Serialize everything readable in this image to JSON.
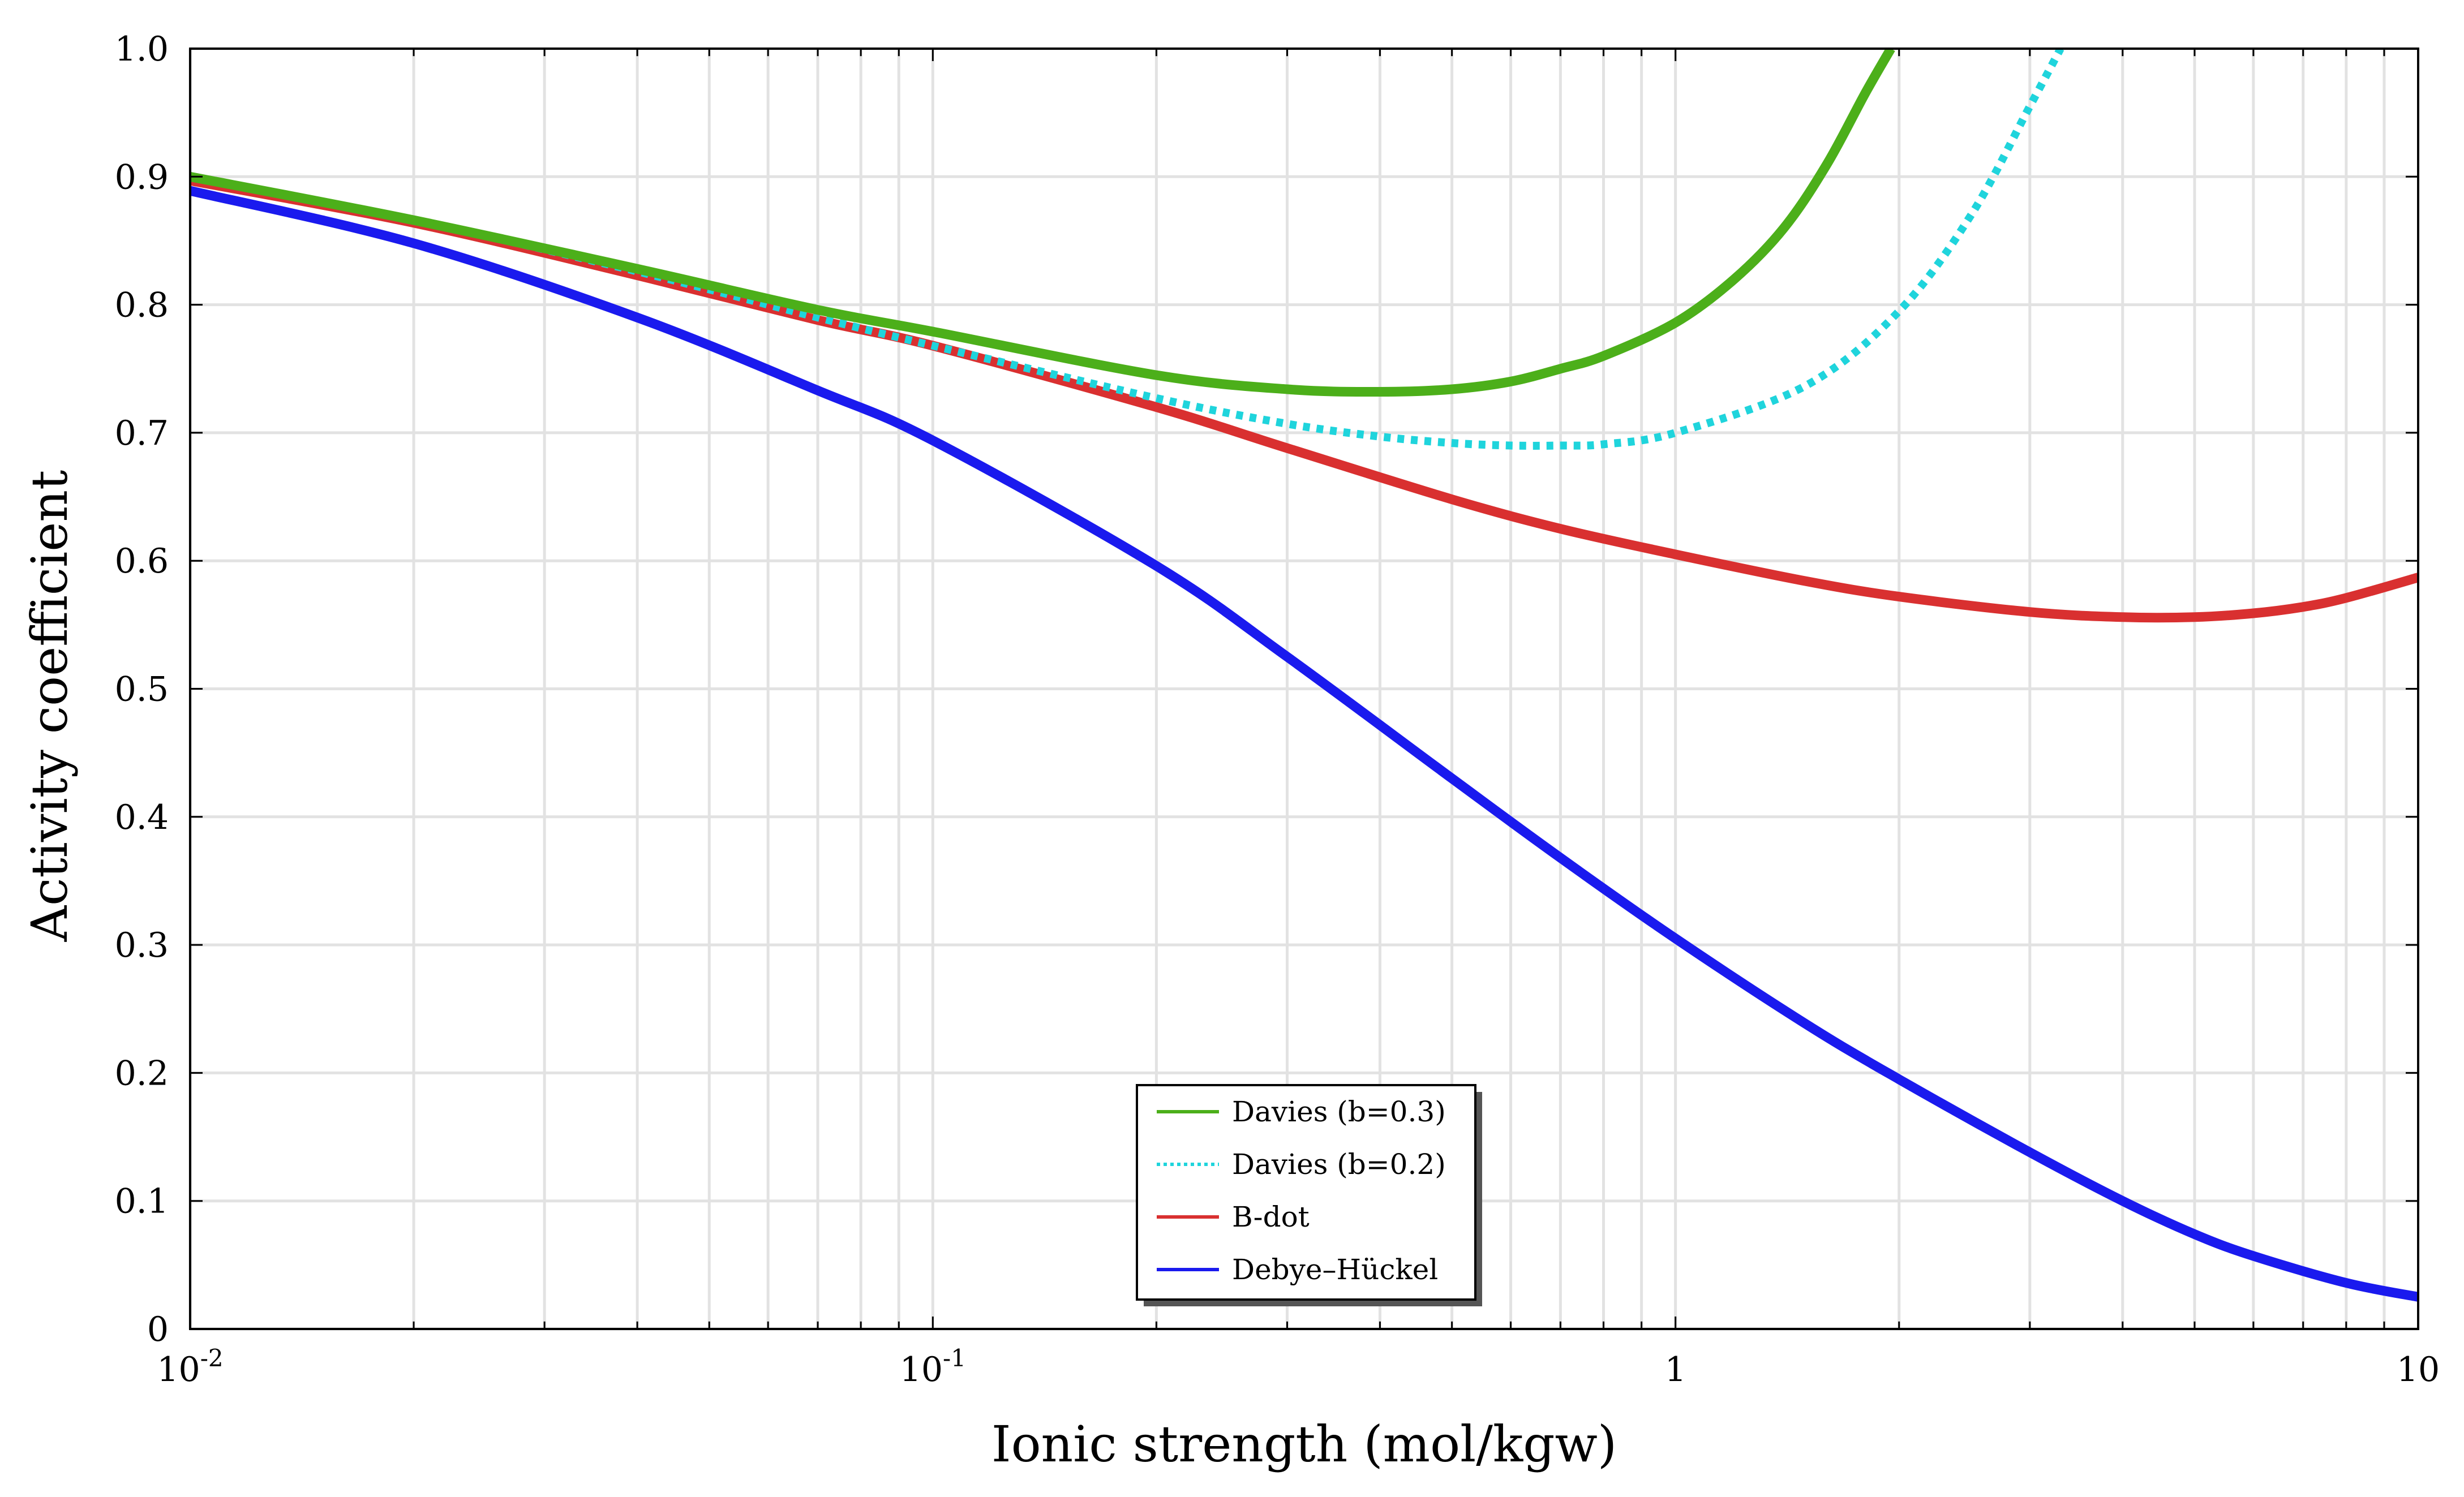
{
  "chart_data": {
    "type": "line",
    "title": "",
    "xlabel": "Ionic strength   (mol/kgw)",
    "ylabel": "Activity coefficient",
    "xscale": "log",
    "xlim": [
      0.01,
      10
    ],
    "ylim": [
      0,
      1.0
    ],
    "grid": true,
    "legend_position": "bottom-center",
    "x_ticks": [
      {
        "value": 0.01,
        "base": "10",
        "exp": "-2"
      },
      {
        "value": 0.1,
        "base": "10",
        "exp": "-1"
      },
      {
        "value": 1,
        "base": "1",
        "exp": ""
      },
      {
        "value": 10,
        "base": "10",
        "exp": ""
      }
    ],
    "y_ticks": [
      {
        "value": 0,
        "label": "0"
      },
      {
        "value": 0.1,
        "label": "0.1"
      },
      {
        "value": 0.2,
        "label": "0.2"
      },
      {
        "value": 0.3,
        "label": "0.3"
      },
      {
        "value": 0.4,
        "label": "0.4"
      },
      {
        "value": 0.5,
        "label": "0.5"
      },
      {
        "value": 0.6,
        "label": "0.6"
      },
      {
        "value": 0.7,
        "label": "0.7"
      },
      {
        "value": 0.8,
        "label": "0.8"
      },
      {
        "value": 0.9,
        "label": "0.9"
      },
      {
        "value": 1.0,
        "label": "1.0"
      }
    ],
    "series": [
      {
        "name": "Davies (b=0.3)",
        "color": "#4caf1a",
        "dash": "solid",
        "x": [
          0.01,
          0.02,
          0.04,
          0.07,
          0.1,
          0.2,
          0.3,
          0.4,
          0.5,
          0.6,
          0.7,
          0.8,
          1.0,
          1.2,
          1.4,
          1.6,
          1.8,
          1.95
        ],
        "y": [
          0.9,
          0.866,
          0.828,
          0.796,
          0.779,
          0.745,
          0.734,
          0.732,
          0.734,
          0.74,
          0.75,
          0.76,
          0.786,
          0.82,
          0.86,
          0.91,
          0.965,
          1.0
        ]
      },
      {
        "name": "Davies (b=0.2)",
        "color": "#1fd4dc",
        "dash": "dotted",
        "x": [
          0.01,
          0.02,
          0.04,
          0.07,
          0.1,
          0.2,
          0.3,
          0.4,
          0.5,
          0.6,
          0.7,
          0.8,
          1.0,
          1.5,
          2.0,
          2.5,
          3.0,
          3.3
        ],
        "y": [
          0.9,
          0.866,
          0.826,
          0.79,
          0.768,
          0.727,
          0.707,
          0.697,
          0.692,
          0.69,
          0.69,
          0.691,
          0.7,
          0.737,
          0.795,
          0.87,
          0.955,
          1.0
        ]
      },
      {
        "name": "B-dot",
        "color": "#d93030",
        "dash": "solid",
        "x": [
          0.01,
          0.02,
          0.04,
          0.07,
          0.1,
          0.2,
          0.3,
          0.5,
          0.7,
          1.0,
          1.5,
          2.0,
          3.0,
          4.0,
          5.0,
          6.0,
          7.0,
          8.0,
          10.0
        ],
        "y": [
          0.897,
          0.864,
          0.823,
          0.788,
          0.768,
          0.72,
          0.688,
          0.648,
          0.625,
          0.605,
          0.584,
          0.572,
          0.56,
          0.556,
          0.556,
          0.559,
          0.564,
          0.571,
          0.587
        ]
      },
      {
        "name": "Debye–Hückel",
        "color": "#1a1aee",
        "dash": "solid",
        "x": [
          0.01,
          0.02,
          0.04,
          0.07,
          0.1,
          0.2,
          0.3,
          0.5,
          0.7,
          1.0,
          1.5,
          2.0,
          3.0,
          4.0,
          5.0,
          6.0,
          8.0,
          10.0
        ],
        "y": [
          0.889,
          0.848,
          0.79,
          0.733,
          0.694,
          0.596,
          0.525,
          0.43,
          0.368,
          0.305,
          0.238,
          0.195,
          0.138,
          0.1,
          0.074,
          0.057,
          0.036,
          0.025
        ]
      }
    ]
  }
}
